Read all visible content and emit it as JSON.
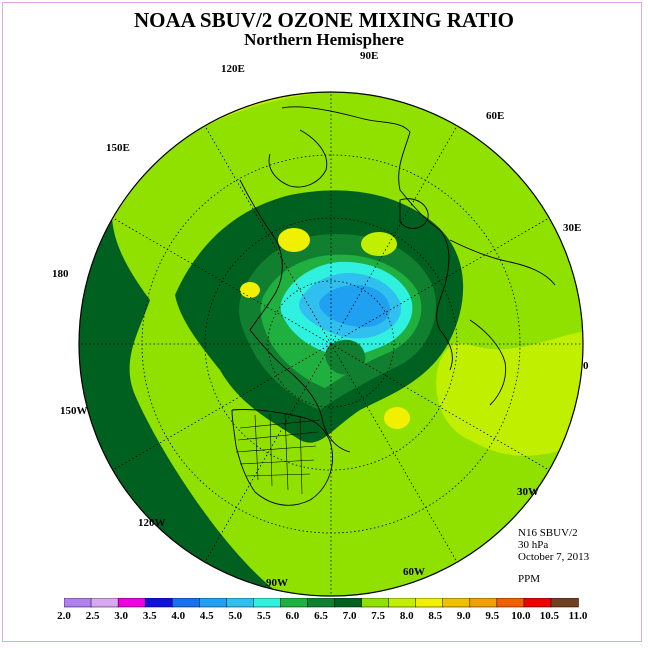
{
  "header": {
    "title": "NOAA SBUV/2 OZONE MIXING RATIO",
    "subtitle": "Northern Hemisphere"
  },
  "longitude_labels": [
    "90E",
    "60E",
    "30E",
    "0",
    "30W",
    "60W",
    "90W",
    "120W",
    "150W",
    "180",
    "150E",
    "120E"
  ],
  "info": {
    "instrument": "N16 SBUV/2",
    "level": "30 hPa",
    "date": "October 7, 2013",
    "units": "PPM"
  },
  "legend": {
    "ticks": [
      "2.0",
      "2.5",
      "3.0",
      "3.5",
      "4.0",
      "4.5",
      "5.0",
      "5.5",
      "6.0",
      "6.5",
      "7.0",
      "7.5",
      "8.0",
      "8.5",
      "9.0",
      "9.5",
      "10.0",
      "10.5",
      "11.0"
    ],
    "colors": [
      "#b080f0",
      "#d8a8f0",
      "#f000e0",
      "#1010e0",
      "#1870f0",
      "#20a0f0",
      "#30c0f0",
      "#30f0e0",
      "#20b040",
      "#108030",
      "#006020",
      "#90e000",
      "#c0f000",
      "#f0f000",
      "#f0c000",
      "#f0a000",
      "#f06000",
      "#f00000",
      "#704020"
    ]
  }
}
